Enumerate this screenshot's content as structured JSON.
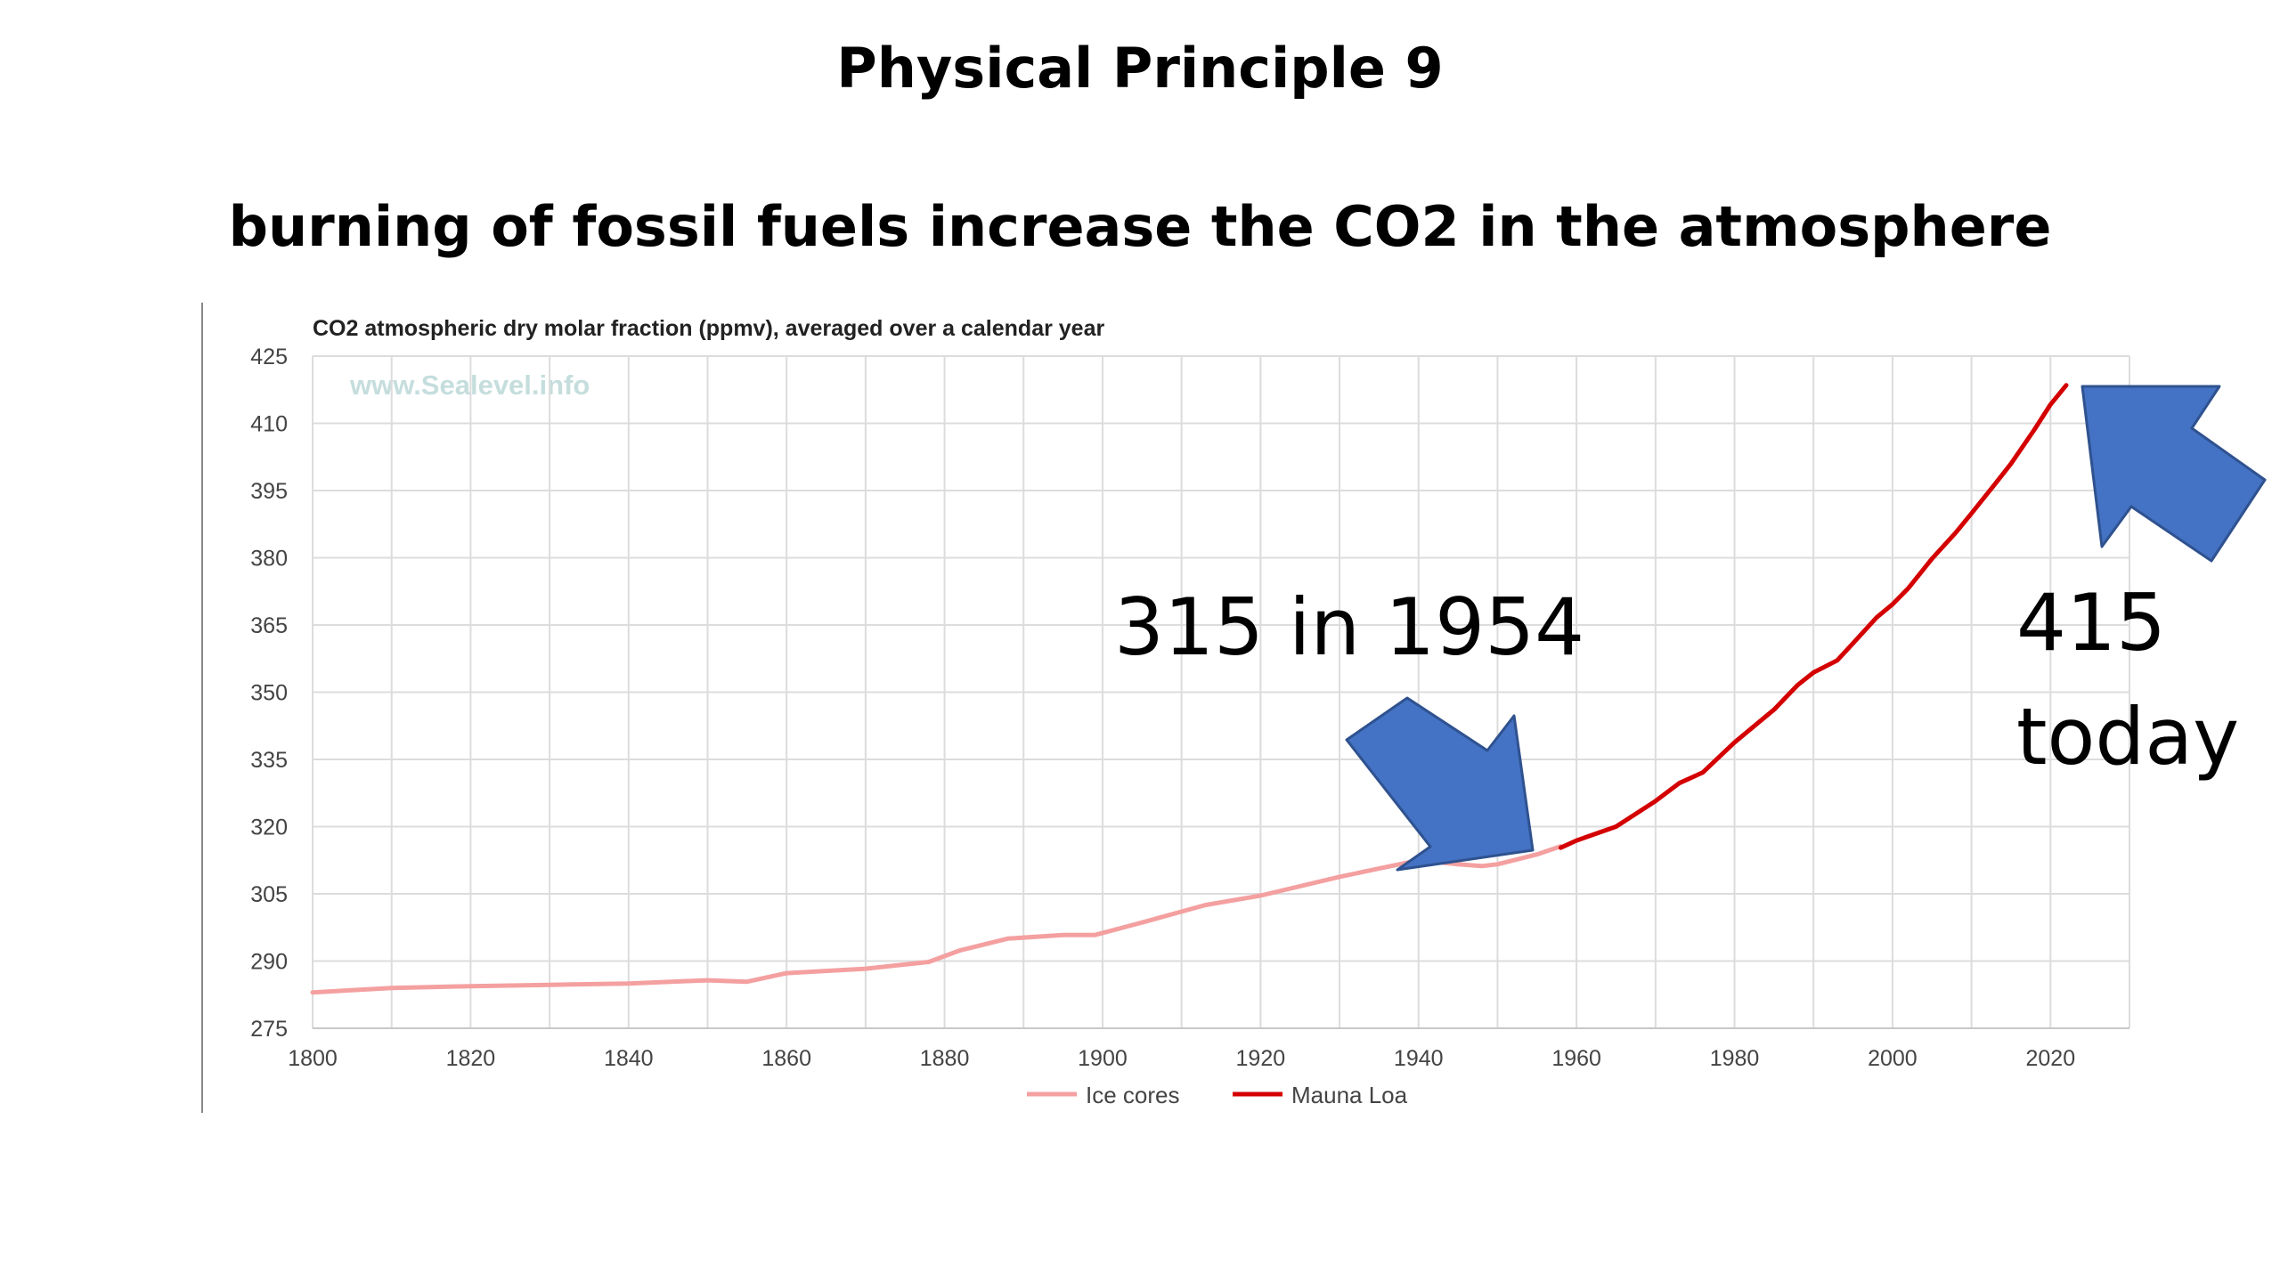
{
  "slide": {
    "title": "Physical Principle 9",
    "subtitle": "burning of fossil fuels increase the CO2 in the atmosphere"
  },
  "annotations": {
    "left": "315 in 1954",
    "right_line1": "415",
    "right_line2": "today"
  },
  "colors": {
    "ice_cores": "#f4a0a0",
    "mauna_loa": "#d40000",
    "arrow_fill": "#4472c4",
    "arrow_stroke": "#2f528f",
    "grid": "#dcdcdc"
  },
  "chart_data": {
    "type": "line",
    "title": "CO2 atmospheric dry molar fraction (ppmv), averaged over a calendar year",
    "watermark": "www.Sealevel.info",
    "xlim": [
      1800,
      2030
    ],
    "ylim": [
      275,
      425
    ],
    "x_ticks": [
      1800,
      1820,
      1840,
      1860,
      1880,
      1900,
      1920,
      1940,
      1960,
      1980,
      2000,
      2020
    ],
    "x_tick_labels": [
      "1800",
      "1820",
      "1840",
      "1860",
      "1880",
      "1900",
      "1920",
      "1940",
      "1960",
      "1980",
      "2000",
      "2020"
    ],
    "y_ticks": [
      275,
      290,
      305,
      320,
      335,
      350,
      365,
      380,
      395,
      410,
      425
    ],
    "y_tick_labels": [
      "275",
      "290",
      "305",
      "320",
      "335",
      "350",
      "365",
      "380",
      "395",
      "410",
      "425"
    ],
    "grid": true,
    "legend_position": "bottom-center",
    "series": [
      {
        "name": "Ice cores",
        "x": [
          1800,
          1810,
          1820,
          1830,
          1840,
          1850,
          1855,
          1860,
          1870,
          1878,
          1882,
          1888,
          1895,
          1899,
          1905,
          1913,
          1920,
          1930,
          1940,
          1945,
          1948,
          1950,
          1955,
          1958
        ],
        "values": [
          283.0,
          284.0,
          284.4,
          284.7,
          285.0,
          285.7,
          285.4,
          287.3,
          288.3,
          289.8,
          292.4,
          295.0,
          295.8,
          295.8,
          298.6,
          302.5,
          304.6,
          308.8,
          312.5,
          311.6,
          311.2,
          311.6,
          313.8,
          315.6
        ]
      },
      {
        "name": "Mauna Loa",
        "x": [
          1958,
          1960,
          1965,
          1970,
          1973,
          1976,
          1980,
          1985,
          1988,
          1990,
          1993,
          1995,
          1998,
          2000,
          2002,
          2005,
          2008,
          2010,
          2013,
          2015,
          2018,
          2020,
          2022
        ],
        "values": [
          315.3,
          316.9,
          320.0,
          325.7,
          329.7,
          332.1,
          338.8,
          346.1,
          351.6,
          354.4,
          357.1,
          360.9,
          366.7,
          369.6,
          373.2,
          379.8,
          385.6,
          389.9,
          396.5,
          401.0,
          408.7,
          414.2,
          418.5
        ]
      }
    ]
  }
}
